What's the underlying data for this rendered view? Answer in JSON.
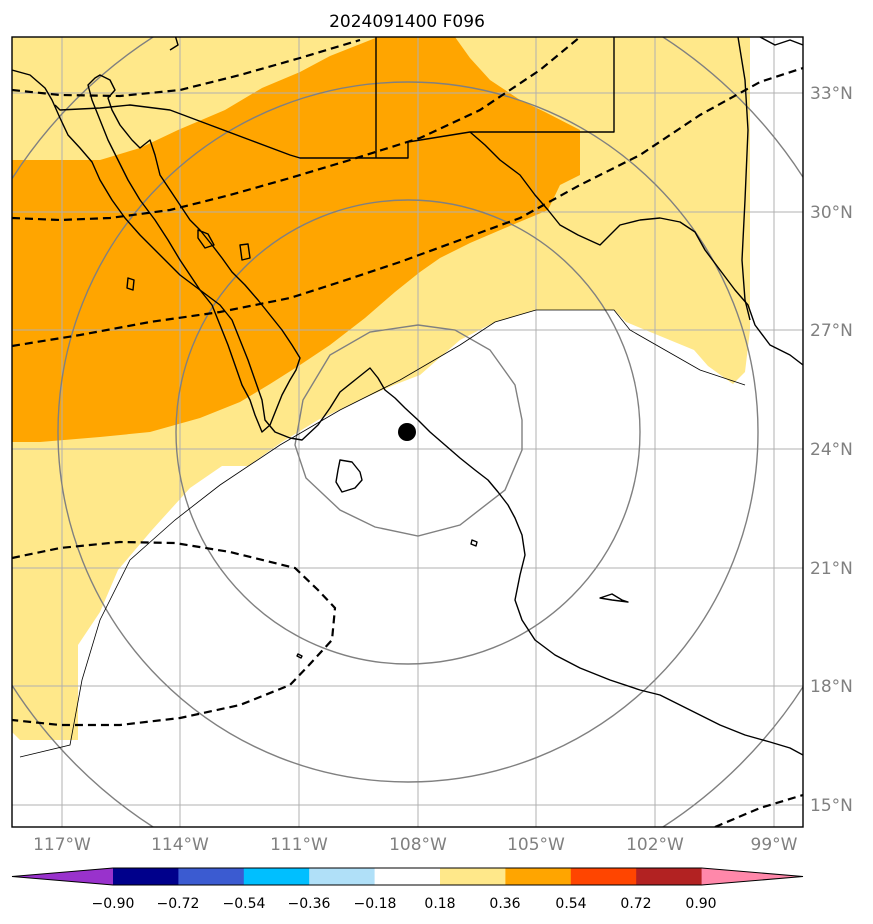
{
  "title": "2024091400 F096",
  "map": {
    "lon_range": [
      -118.2,
      -98.2
    ],
    "lat_range": [
      14.45,
      34.4
    ],
    "projection": "plate-carree",
    "gridlines": true,
    "storm_center": {
      "lon": -108.2,
      "lat": 24.4
    },
    "lon_ticks": [
      {
        "value": -117,
        "label": "117°W"
      },
      {
        "value": -114,
        "label": "114°W"
      },
      {
        "value": -111,
        "label": "111°W"
      },
      {
        "value": -108,
        "label": "108°W"
      },
      {
        "value": -105,
        "label": "105°W"
      },
      {
        "value": -102,
        "label": "102°W"
      },
      {
        "value": -99,
        "label": "99°W"
      }
    ],
    "lat_ticks": [
      {
        "value": 33,
        "label": "33°N"
      },
      {
        "value": 30,
        "label": "30°N"
      },
      {
        "value": 27,
        "label": "27°N"
      },
      {
        "value": 24,
        "label": "24°N"
      },
      {
        "value": 21,
        "label": "21°N"
      },
      {
        "value": 18,
        "label": "18°N"
      },
      {
        "value": 15,
        "label": "15°N"
      }
    ],
    "range_rings": {
      "color": "#808080",
      "count": 4
    },
    "dashed_contours": {
      "color": "#000000",
      "count": 6
    },
    "shading": [
      {
        "level": "0.18 to 0.36",
        "color": "#ffe88a"
      },
      {
        "level": "0.36 to 0.54",
        "color": "#ffa500"
      }
    ]
  },
  "colorbar": {
    "colors": [
      "#9932cc",
      "#00008b",
      "#3b5bd1",
      "#00bfff",
      "#b0e0f8",
      "#ffffff",
      "#ffe88a",
      "#ffa500",
      "#ff4500",
      "#b22222",
      "#ff88aa"
    ],
    "tick_labels": [
      "−0.90",
      "−0.72",
      "−0.54",
      "−0.36",
      "−0.18",
      "0.18",
      "0.36",
      "0.54",
      "0.72",
      "0.90"
    ]
  }
}
